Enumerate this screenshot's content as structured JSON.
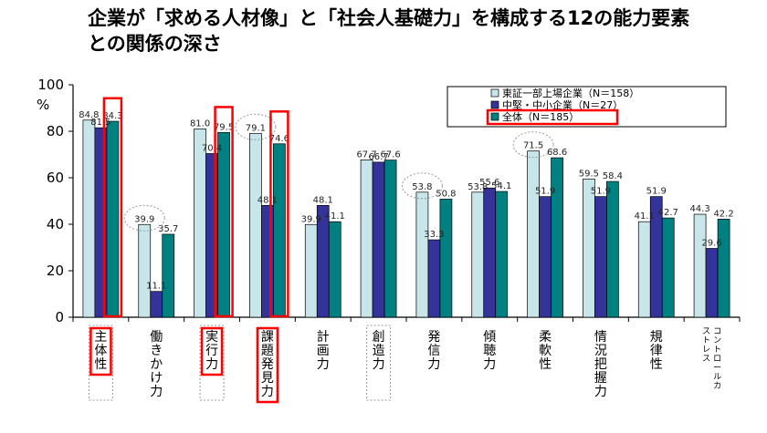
{
  "title": {
    "line1": "企業が「求める人材像」と「社会人基礎力」を構成する12の能力要素",
    "line2": "との関係の深さ"
  },
  "colors": {
    "series1": "#c8e6ea",
    "series2": "#333399",
    "series3": "#008080",
    "highlight": "#ff0000",
    "dotted": "#9a9a9a"
  },
  "chart_data": {
    "type": "bar",
    "ylabel": "%",
    "ylim": [
      0,
      100
    ],
    "yticks": [
      0,
      20,
      40,
      60,
      80,
      100
    ],
    "grid": false,
    "legend_position": "top-right",
    "categories": [
      "主体性",
      "働きかけ力",
      "実行力",
      "課題発見力",
      "計画力",
      "創造力",
      "発信力",
      "傾聴力",
      "柔軟性",
      "情況把握力",
      "規律性",
      "コントロールカストレス"
    ],
    "category_lines": [
      [
        "主体性"
      ],
      [
        "働きかけ力"
      ],
      [
        "実行力"
      ],
      [
        "課題発見力"
      ],
      [
        "計画力"
      ],
      [
        "創造力"
      ],
      [
        "発信力"
      ],
      [
        "傾聴力"
      ],
      [
        "柔軟性"
      ],
      [
        "情況把握力"
      ],
      [
        "規律性"
      ],
      [
        "コントロールカ",
        "ストレス"
      ]
    ],
    "series": [
      {
        "name": "東証一部上場企業（N＝158）",
        "values": [
          84.8,
          39.9,
          81.0,
          79.1,
          39.9,
          67.7,
          53.8,
          53.8,
          71.5,
          59.5,
          41.1,
          44.3
        ],
        "labels": [
          "84.8",
          "39.9",
          "81.0",
          "79.1",
          "39.9",
          "67.7",
          "53.8",
          "53.8",
          "71.5",
          "59.5",
          "41.1",
          "44.3"
        ]
      },
      {
        "name": "中堅・中小企業（N＝27）",
        "values": [
          81.5,
          11.1,
          70.4,
          48.1,
          48.1,
          66.7,
          33.3,
          55.6,
          51.9,
          51.9,
          51.9,
          29.6
        ],
        "labels": [
          "81.5",
          "11.1",
          "70.4",
          "48.1",
          "48.1",
          "66.7",
          "33.3",
          "55.6",
          "51.9",
          "51.9",
          "51.9",
          "29.6"
        ]
      },
      {
        "name": "全体（N＝185）",
        "values": [
          84.3,
          35.7,
          79.5,
          74.6,
          41.1,
          67.6,
          50.8,
          54.1,
          68.6,
          58.4,
          42.7,
          42.2
        ],
        "labels": [
          "84.3",
          "35.7",
          "79.5",
          "74.6",
          "41.1",
          "67.6",
          "50.8",
          "54.1",
          "68.6",
          "58.4",
          "42.7",
          "42.2"
        ]
      }
    ],
    "highlighted_bars": [
      {
        "category": 0,
        "series": 2
      },
      {
        "category": 2,
        "series": 2
      },
      {
        "category": 3,
        "series": 2
      }
    ],
    "highlighted_labels": [
      0,
      2,
      3
    ],
    "dotted_label_boxes": [
      0,
      2,
      5
    ],
    "dotted_ellipses": [
      {
        "category": 1,
        "series": 0
      },
      {
        "category": 3,
        "series": 0
      },
      {
        "category": 6,
        "series": 0
      },
      {
        "category": 8,
        "series": 0
      }
    ],
    "highlighted_legend": 2
  }
}
